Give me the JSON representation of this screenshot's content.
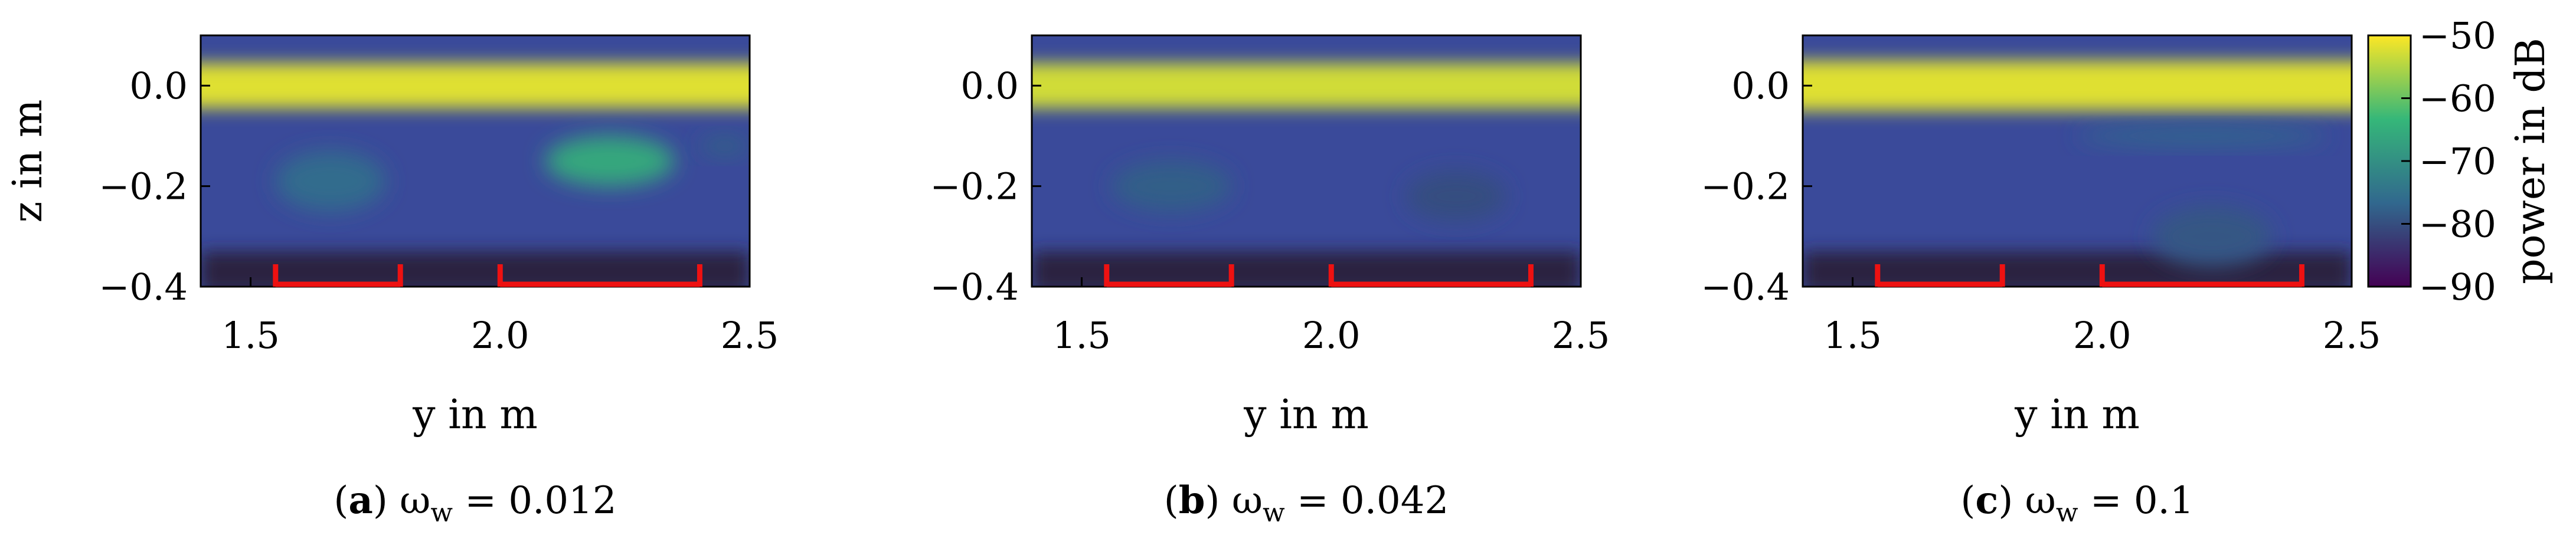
{
  "figure": {
    "colorbar": {
      "label": "power in dB",
      "min": -90,
      "max": -50,
      "ticks": [
        "−50",
        "−60",
        "−70",
        "−80",
        "−90"
      ],
      "colormap": [
        "#440154",
        "#31688e",
        "#35b779",
        "#fde725"
      ]
    },
    "markers": {
      "color": "#ee1111",
      "segments": [
        [
          1.55,
          1.8
        ],
        [
          2.0,
          2.4
        ]
      ],
      "z": -0.4
    }
  },
  "chart_data": [
    {
      "type": "heatmap",
      "panel_letter": "a",
      "caption_rest": " ω",
      "caption_sub": "w",
      "caption_value": " = 0.012",
      "xlabel": "y in m",
      "ylabel": "z in m",
      "xlim": [
        1.4,
        2.5
      ],
      "ylim": [
        -0.4,
        0.1
      ],
      "xticks": [
        "1.5",
        "2.0",
        "2.5"
      ],
      "yticks": [
        "0.0",
        "−0.2",
        "−0.4"
      ],
      "colorbar_label": "power in dB",
      "crange": [
        -90,
        -50
      ],
      "features": [
        {
          "shape": "band",
          "z": 0.0,
          "height": 0.09,
          "y0": 1.4,
          "y1": 2.5,
          "power": -52
        },
        {
          "shape": "blob",
          "y": 1.66,
          "z": -0.19,
          "ry": 0.11,
          "rz": 0.06,
          "power": -76
        },
        {
          "shape": "blob",
          "y": 2.22,
          "z": -0.15,
          "ry": 0.13,
          "rz": 0.05,
          "power": -66
        },
        {
          "shape": "blob",
          "y": 2.45,
          "z": -0.12,
          "ry": 0.05,
          "rz": 0.02,
          "power": -78
        }
      ]
    },
    {
      "type": "heatmap",
      "panel_letter": "b",
      "caption_rest": " ω",
      "caption_sub": "w",
      "caption_value": " = 0.042",
      "xlabel": "y in m",
      "ylabel": "",
      "xlim": [
        1.4,
        2.5
      ],
      "ylim": [
        -0.4,
        0.1
      ],
      "xticks": [
        "1.5",
        "2.0",
        "2.5"
      ],
      "yticks": [
        "0.0",
        "−0.2",
        "−0.4"
      ],
      "colorbar_label": "power in dB",
      "crange": [
        -90,
        -50
      ],
      "features": [
        {
          "shape": "band",
          "z": 0.0,
          "height": 0.09,
          "y0": 1.4,
          "y1": 2.5,
          "power": -53
        },
        {
          "shape": "blob",
          "y": 1.68,
          "z": -0.2,
          "ry": 0.12,
          "rz": 0.05,
          "power": -78
        },
        {
          "shape": "blob",
          "y": 2.25,
          "z": -0.22,
          "ry": 0.1,
          "rz": 0.05,
          "power": -80
        }
      ]
    },
    {
      "type": "heatmap",
      "panel_letter": "c",
      "caption_rest": " ω",
      "caption_sub": "w",
      "caption_value": " = 0.1",
      "xlabel": "y in m",
      "ylabel": "",
      "xlim": [
        1.4,
        2.5
      ],
      "ylim": [
        -0.4,
        0.1
      ],
      "xticks": [
        "1.5",
        "2.0",
        "2.5"
      ],
      "yticks": [
        "0.0",
        "−0.2",
        "−0.4"
      ],
      "colorbar_label": "power in dB",
      "crange": [
        -90,
        -50
      ],
      "features": [
        {
          "shape": "band",
          "z": 0.0,
          "height": 0.1,
          "y0": 1.4,
          "y1": 2.5,
          "power": -52
        },
        {
          "shape": "blob",
          "y": 2.2,
          "z": -0.1,
          "ry": 0.25,
          "rz": 0.02,
          "power": -77
        },
        {
          "shape": "blob",
          "y": 2.22,
          "z": -0.3,
          "ry": 0.12,
          "rz": 0.06,
          "power": -79
        }
      ]
    }
  ]
}
